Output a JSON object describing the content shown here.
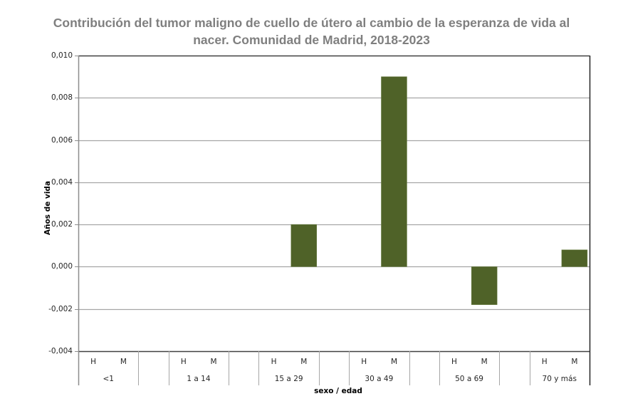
{
  "chart_data": {
    "type": "bar",
    "title": "Contribución del tumor maligno de cuello de útero al cambio de la esperanza de vida al nacer. Comunidad de Madrid, 2018-2023",
    "title_lines": [
      "Contribución del tumor maligno de cuello de útero al cambio de la esperanza de vida al",
      "nacer. Comunidad de Madrid, 2018-2023"
    ],
    "xlabel": "sexo / edad",
    "ylabel": "Años de vida",
    "ylim": [
      -0.004,
      0.01
    ],
    "yticks": [
      "0,010",
      "0,008",
      "0,006",
      "0,004",
      "0,002",
      "0,000",
      "-0,002",
      "-0,004"
    ],
    "grid": true,
    "legend": null,
    "groups": [
      "<1",
      "1 a 14",
      "15 a 29",
      "30 a 49",
      "50 a 69",
      "70 y más"
    ],
    "subcategories": [
      "H",
      "M"
    ],
    "categories": [
      "<1 H",
      "<1 M",
      "1 a 14 H",
      "1 a 14 M",
      "15 a 29 H",
      "15 a 29 M",
      "30 a 49 H",
      "30 a 49 M",
      "50 a 69 H",
      "50 a 69 M",
      "70 y más H",
      "70 y más M"
    ],
    "values": [
      0,
      0,
      0,
      0,
      0,
      0.002,
      0,
      0.009,
      0,
      -0.0018,
      0,
      0.0008
    ],
    "bar_color": "#4f6228"
  }
}
